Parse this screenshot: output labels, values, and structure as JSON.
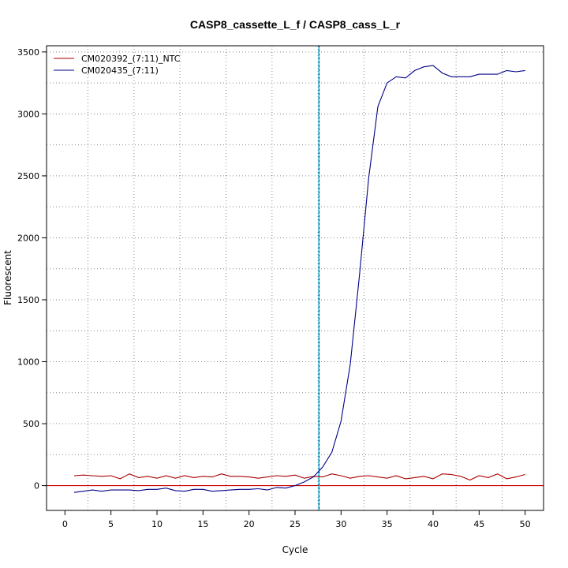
{
  "chart_data": {
    "type": "line",
    "title": "CASP8_cassette_L_f / CASP8_cass_L_r",
    "xlabel": "Cycle",
    "ylabel": "Fluorescent",
    "xlim": [
      -2,
      52
    ],
    "ylim": [
      -200,
      3550
    ],
    "xticks": [
      0,
      5,
      10,
      15,
      20,
      25,
      30,
      35,
      40,
      45,
      50
    ],
    "yticks": [
      0,
      500,
      1000,
      1500,
      2000,
      2500,
      3000,
      3500
    ],
    "grid": true,
    "legend": "top-left",
    "threshold_cycle": 27.6,
    "threshold_color": "#00cccc",
    "baseline_value": 0,
    "baseline_color": "#cc0000",
    "series": [
      {
        "name": "CM020392_(7:11)_NTC",
        "color": "#aa0000",
        "x": [
          1,
          2,
          3,
          4,
          5,
          6,
          7,
          8,
          9,
          10,
          11,
          12,
          13,
          14,
          15,
          16,
          17,
          18,
          19,
          20,
          21,
          22,
          23,
          24,
          25,
          26,
          27,
          28,
          29,
          30,
          31,
          32,
          33,
          34,
          35,
          36,
          37,
          38,
          39,
          40,
          41,
          42,
          43,
          44,
          45,
          46,
          47,
          48,
          49,
          50
        ],
        "values": [
          80,
          85,
          80,
          75,
          80,
          55,
          95,
          65,
          75,
          60,
          80,
          60,
          80,
          65,
          75,
          70,
          95,
          75,
          75,
          70,
          60,
          70,
          80,
          75,
          85,
          60,
          75,
          70,
          95,
          80,
          60,
          75,
          80,
          70,
          60,
          80,
          55,
          65,
          75,
          55,
          95,
          90,
          75,
          45,
          80,
          65,
          95,
          55,
          70,
          90
        ]
      },
      {
        "name": "CM020435_(7:11)",
        "color": "#000088",
        "x": [
          1,
          2,
          3,
          4,
          5,
          6,
          7,
          8,
          9,
          10,
          11,
          12,
          13,
          14,
          15,
          16,
          17,
          18,
          19,
          20,
          21,
          22,
          23,
          24,
          25,
          26,
          27,
          28,
          29,
          30,
          31,
          32,
          33,
          34,
          35,
          36,
          37,
          38,
          39,
          40,
          41,
          42,
          43,
          44,
          45,
          46,
          47,
          48,
          49,
          50
        ],
        "values": [
          -55,
          -45,
          -35,
          -45,
          -35,
          -35,
          -35,
          -40,
          -30,
          -30,
          -20,
          -40,
          -45,
          -30,
          -30,
          -45,
          -40,
          -35,
          -30,
          -30,
          -25,
          -35,
          -15,
          -20,
          0,
          30,
          70,
          150,
          270,
          520,
          980,
          1700,
          2480,
          3060,
          3250,
          3300,
          3290,
          3350,
          3380,
          3390,
          3330,
          3300,
          3300,
          3300,
          3320,
          3320,
          3320,
          3350,
          3340,
          3350
        ]
      }
    ]
  }
}
